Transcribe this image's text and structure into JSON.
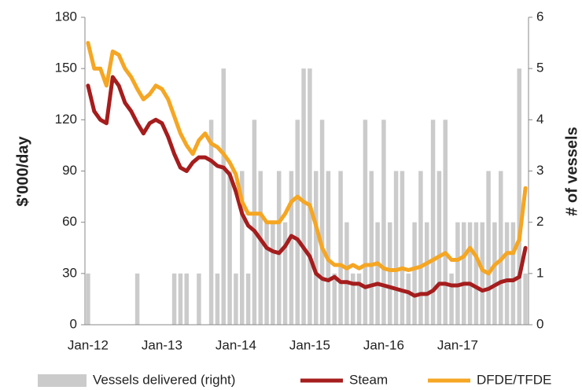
{
  "chart_data": {
    "type": "combo",
    "categories": [
      "Jan-12",
      null,
      null,
      null,
      null,
      null,
      null,
      null,
      null,
      null,
      null,
      null,
      "Jan-13",
      null,
      null,
      null,
      null,
      null,
      null,
      null,
      null,
      null,
      null,
      null,
      "Jan-14",
      null,
      null,
      null,
      null,
      null,
      null,
      null,
      null,
      null,
      null,
      null,
      "Jan-15",
      null,
      null,
      null,
      null,
      null,
      null,
      null,
      null,
      null,
      null,
      null,
      "Jan-16",
      null,
      null,
      null,
      null,
      null,
      null,
      null,
      null,
      null,
      null,
      null,
      "Jan-17",
      null,
      null,
      null,
      null,
      null,
      null,
      null,
      null,
      null,
      null,
      null
    ],
    "ylabel": "$'000/day",
    "y2label": "# of vessels",
    "ylim": [
      0,
      180
    ],
    "yticks": [
      0,
      30,
      60,
      90,
      120,
      150,
      180
    ],
    "y2lim": [
      0,
      6
    ],
    "y2ticks": [
      0,
      1,
      2,
      3,
      4,
      5,
      6
    ],
    "legend": "bottom",
    "series": [
      {
        "name": "Vessels delivered (right)",
        "type": "bar",
        "axis": "y2",
        "color": "#cbcbcb",
        "values": [
          1,
          0,
          0,
          0,
          0,
          0,
          0,
          0,
          1,
          0,
          0,
          0,
          0,
          0,
          1,
          1,
          1,
          0,
          1,
          0,
          4,
          1,
          5,
          3,
          1,
          3,
          1,
          4,
          3,
          2,
          2,
          3,
          2,
          3,
          4,
          5,
          5,
          3,
          4,
          3,
          1,
          3,
          2,
          1,
          1,
          4,
          3,
          2,
          4,
          2,
          3,
          3,
          1,
          2,
          3,
          2,
          4,
          3,
          4,
          1,
          2,
          2,
          2,
          2,
          2,
          3,
          2,
          3,
          2,
          2,
          5,
          1
        ]
      },
      {
        "name": "Steam",
        "type": "line",
        "color": "#a51d1d",
        "values": [
          140,
          125,
          120,
          118,
          145,
          140,
          130,
          125,
          118,
          112,
          118,
          120,
          118,
          110,
          100,
          92,
          90,
          95,
          98,
          98,
          96,
          93,
          92,
          88,
          78,
          65,
          58,
          55,
          50,
          45,
          43,
          42,
          46,
          52,
          50,
          45,
          40,
          30,
          27,
          26,
          28,
          25,
          25,
          24,
          24,
          22,
          23,
          24,
          23,
          22,
          21,
          20,
          19,
          17,
          18,
          18,
          20,
          24,
          24,
          23,
          23,
          24,
          24,
          22,
          20,
          21,
          23,
          25,
          26,
          26,
          28,
          45
        ]
      },
      {
        "name": "DFDE/TFDE",
        "type": "line",
        "color": "#f5a623",
        "values": [
          165,
          150,
          150,
          140,
          160,
          158,
          150,
          145,
          138,
          132,
          135,
          140,
          138,
          132,
          122,
          112,
          105,
          100,
          108,
          112,
          106,
          104,
          100,
          95,
          88,
          72,
          65,
          65,
          65,
          60,
          60,
          60,
          65,
          72,
          75,
          72,
          70,
          58,
          45,
          38,
          35,
          35,
          33,
          35,
          33,
          35,
          35,
          36,
          33,
          32,
          32,
          33,
          32,
          33,
          34,
          36,
          38,
          40,
          42,
          38,
          38,
          40,
          45,
          40,
          32,
          30,
          35,
          38,
          42,
          42,
          50,
          80
        ]
      }
    ]
  }
}
